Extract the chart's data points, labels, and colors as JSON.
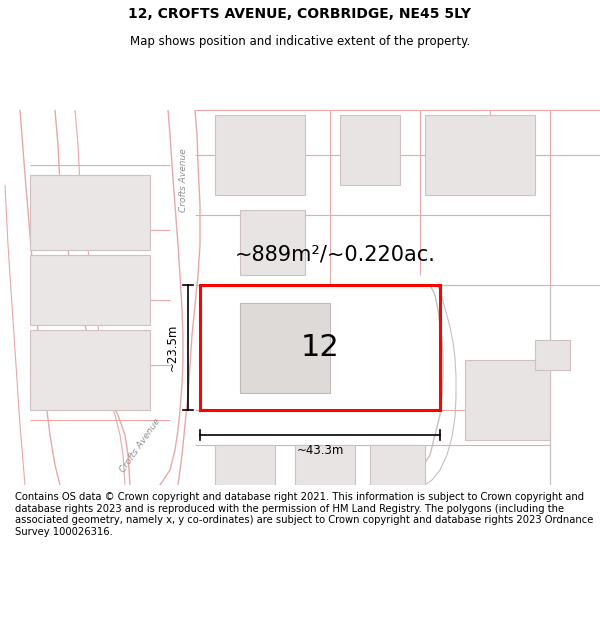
{
  "title": "12, CROFTS AVENUE, CORBRIDGE, NE45 5LY",
  "subtitle": "Map shows position and indicative extent of the property.",
  "footer": "Contains OS data © Crown copyright and database right 2021. This information is subject to Crown copyright and database rights 2023 and is reproduced with the permission of HM Land Registry. The polygons (including the associated geometry, namely x, y co-ordinates) are subject to Crown copyright and database rights 2023 Ordnance Survey 100026316.",
  "area_label": "~889m²/~0.220ac.",
  "property_number": "12",
  "dim_width": "~43.3m",
  "dim_height": "~23.5m",
  "street_label1": "Crofts Avenue",
  "street_label2": "Crofts Avenue",
  "road_line_color": "#e8a8a8",
  "road_line_color2": "#ccaaaa",
  "building_fill": "#e8e4e4",
  "building_edge": "#d0c0c0",
  "plot_color": "#ff0000",
  "title_fontsize": 10,
  "subtitle_fontsize": 8.5,
  "footer_fontsize": 7.2,
  "map_bg": "#ffffff"
}
